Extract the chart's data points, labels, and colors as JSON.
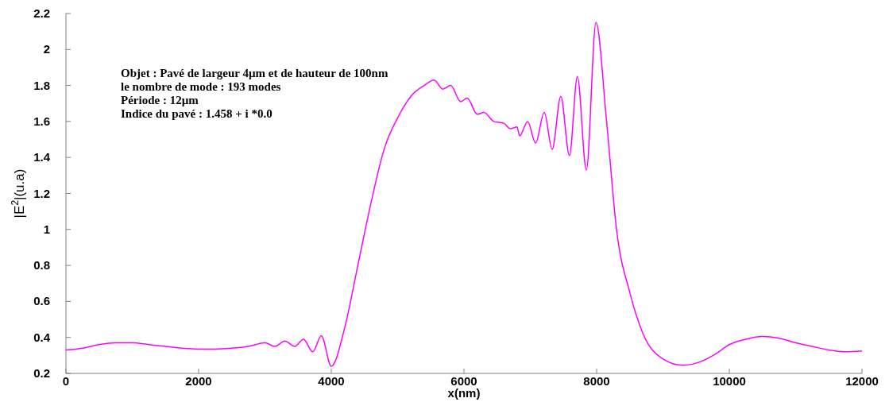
{
  "chart_data": {
    "type": "line",
    "xlabel": "x(nm)",
    "ylabel": "|E$^{2}$|(u.a)",
    "annotations": [
      "Objet : Pavé de largeur 4µm et de hauteur de 100nm",
      "le nombre de mode : 193 modes",
      "Période : 12µm",
      "Indice du pavé : 1.458 + i *0.0"
    ],
    "xlim": [
      0,
      12000
    ],
    "xticks": [
      0,
      2000,
      4000,
      6000,
      8000,
      10000,
      12000
    ],
    "ylim": [
      0.2,
      2.2
    ],
    "yticks": [
      0.2,
      0.4,
      0.6,
      0.8,
      1,
      1.2,
      1.4,
      1.6,
      1.8,
      2,
      2.2
    ],
    "series": [
      {
        "color": "#ff00ff",
        "x": [
          0,
          250,
          500,
          750,
          1000,
          1250,
          1500,
          1750,
          2000,
          2250,
          2500,
          2750,
          3000,
          3150,
          3300,
          3450,
          3580,
          3720,
          3850,
          4000,
          4200,
          4400,
          4600,
          4800,
          5000,
          5200,
          5400,
          5550,
          5680,
          5800,
          5950,
          6050,
          6200,
          6300,
          6450,
          6600,
          6700,
          6800,
          6840,
          6960,
          7080,
          7210,
          7330,
          7460,
          7590,
          7710,
          7845,
          7990,
          8150,
          8300,
          8500,
          8700,
          9000,
          9300,
          9600,
          9800,
          10000,
          10250,
          10500,
          10750,
          11000,
          11250,
          11500,
          11750,
          12000
        ],
        "values": [
          0.33,
          0.34,
          0.36,
          0.37,
          0.37,
          0.36,
          0.35,
          0.34,
          0.335,
          0.335,
          0.34,
          0.35,
          0.37,
          0.35,
          0.38,
          0.35,
          0.39,
          0.32,
          0.41,
          0.24,
          0.45,
          0.8,
          1.15,
          1.45,
          1.62,
          1.74,
          1.8,
          1.83,
          1.78,
          1.8,
          1.71,
          1.73,
          1.64,
          1.65,
          1.6,
          1.59,
          1.56,
          1.57,
          1.52,
          1.6,
          1.48,
          1.65,
          1.445,
          1.74,
          1.41,
          1.85,
          1.33,
          2.15,
          1.6,
          1.0,
          0.65,
          0.42,
          0.28,
          0.245,
          0.27,
          0.31,
          0.36,
          0.39,
          0.405,
          0.395,
          0.37,
          0.35,
          0.33,
          0.32,
          0.325
        ]
      }
    ]
  }
}
